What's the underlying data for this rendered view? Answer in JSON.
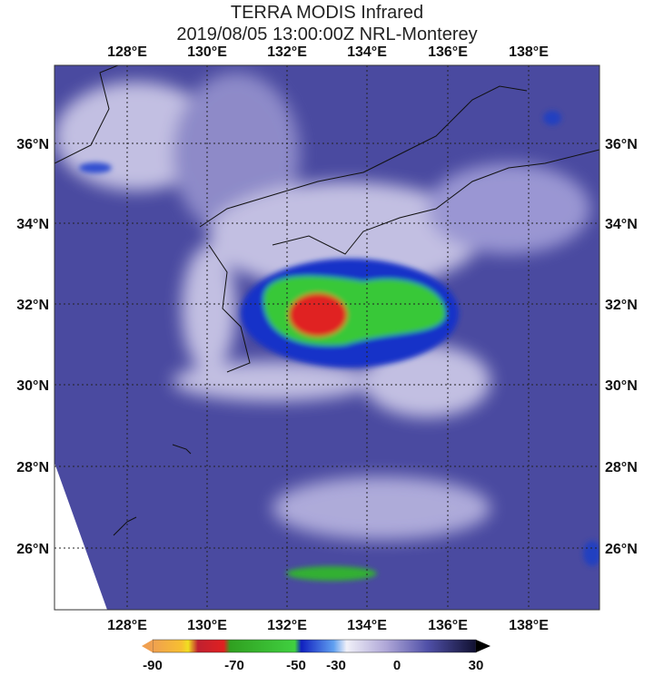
{
  "title": [
    "TERRA MODIS Infrared",
    "2019/08/05 13:00:00Z NRL-Monterey"
  ],
  "lon_labels": [
    "128°E",
    "130°E",
    "132°E",
    "134°E",
    "136°E",
    "138°E"
  ],
  "lat_labels": [
    "36°N",
    "34°N",
    "32°N",
    "30°N",
    "28°N",
    "26°N"
  ],
  "colorbar_ticks": [
    -90,
    -70,
    -50,
    -30,
    0,
    30
  ]
}
